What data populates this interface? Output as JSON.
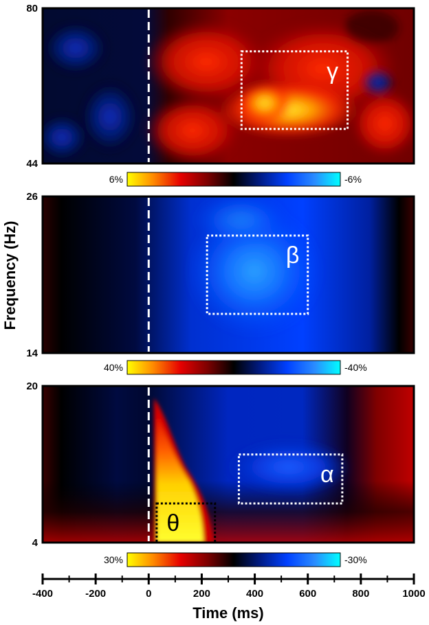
{
  "chart_data": {
    "type": "heatmap",
    "xlabel": "Time (ms)",
    "ylabel": "Frequency (Hz)",
    "xlim": [
      -400,
      1000
    ],
    "xticks": [
      -400,
      -200,
      0,
      200,
      400,
      600,
      800,
      1000
    ],
    "stimulus_onset_ms": 0,
    "colormap": [
      "#ffff00",
      "#ff8c00",
      "#e60000",
      "#7a0000",
      "#000000",
      "#001a80",
      "#0040ff",
      "#2a8cff",
      "#00ffff"
    ],
    "panels": [
      {
        "band": "γ",
        "ylim": [
          44,
          80
        ],
        "yticks": [
          "80",
          "44"
        ],
        "colorbar": {
          "min_label": "6%",
          "max_label": "-6%",
          "range": [
            6,
            -6
          ]
        },
        "roi": {
          "x": [
            350,
            750
          ],
          "y": [
            52,
            70
          ],
          "style": "white-dotted"
        }
      },
      {
        "band": "β",
        "ylim": [
          14,
          26
        ],
        "yticks": [
          "26",
          "14"
        ],
        "colorbar": {
          "min_label": "40%",
          "max_label": "-40%",
          "range": [
            40,
            -40
          ]
        },
        "roi": {
          "x": [
            220,
            600
          ],
          "y": [
            17,
            23
          ],
          "style": "white-dotted"
        }
      },
      {
        "band": "α",
        "ylim": [
          4,
          20
        ],
        "yticks": [
          "20",
          "4"
        ],
        "colorbar": {
          "min_label": "30%",
          "max_label": "-30%",
          "range": [
            30,
            -30
          ]
        },
        "roi": {
          "x": [
            340,
            730
          ],
          "y": [
            8,
            13
          ],
          "style": "white-dotted"
        },
        "roi_secondary": {
          "band": "θ",
          "x": [
            30,
            250
          ],
          "y": [
            4,
            8
          ],
          "style": "black-dotted"
        }
      }
    ]
  }
}
